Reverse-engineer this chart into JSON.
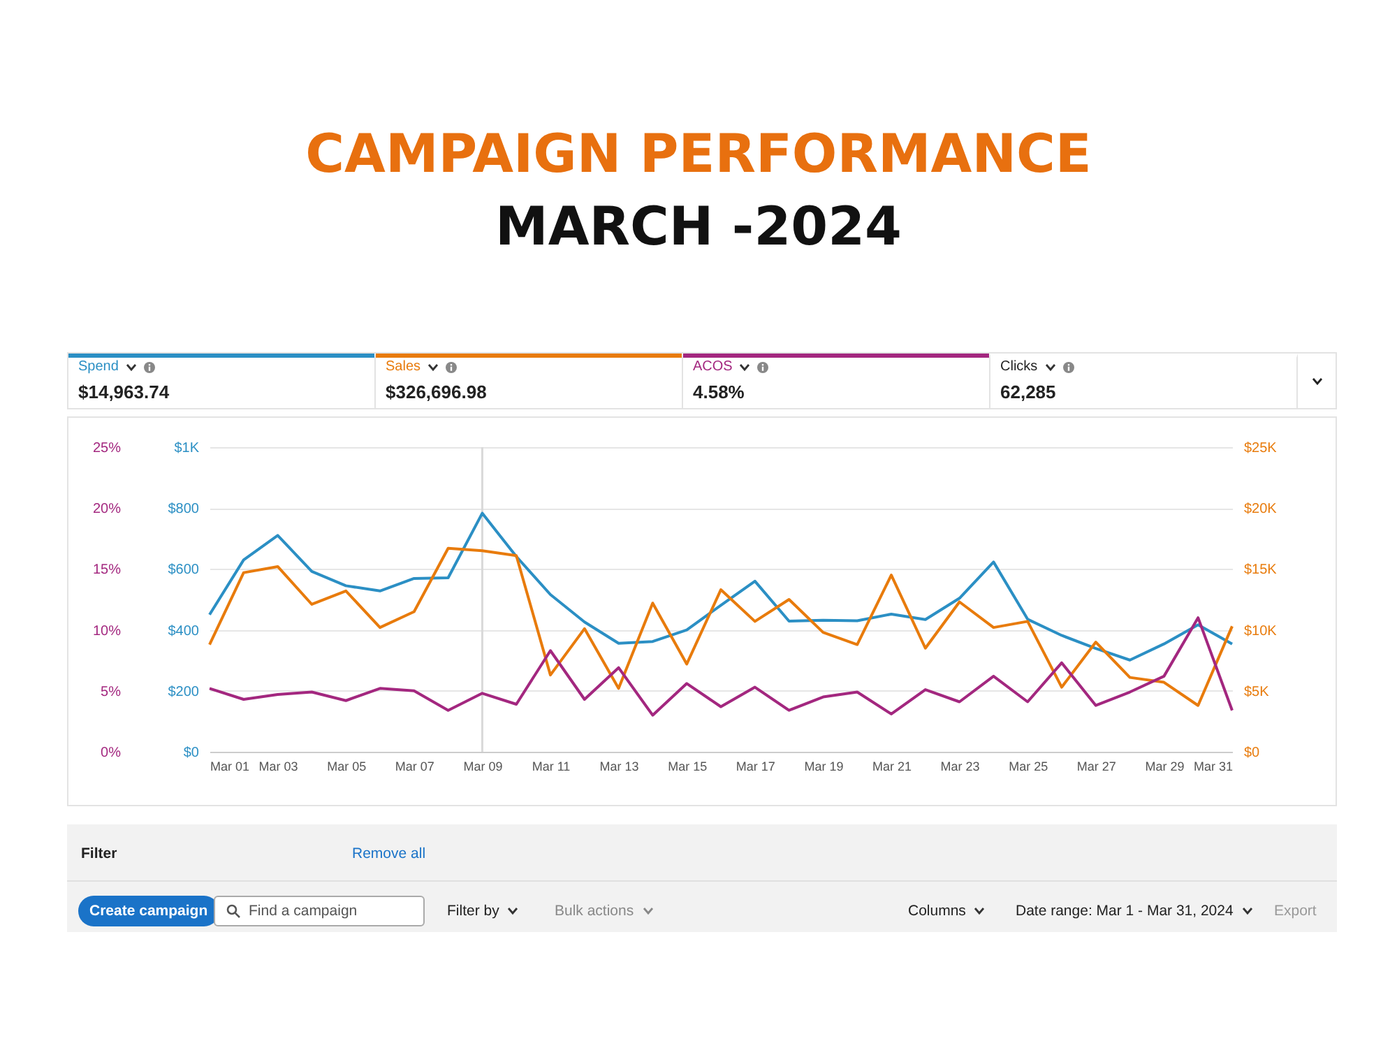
{
  "chart_data": {
    "type": "line",
    "title": "CAMPAIGN PERFORMANCE",
    "subtitle": "MARCH -2024",
    "x": [
      "2024-03-01",
      "2024-03-02",
      "2024-03-03",
      "2024-03-04",
      "2024-03-05",
      "2024-03-06",
      "2024-03-07",
      "2024-03-08",
      "2024-03-09",
      "2024-03-10",
      "2024-03-11",
      "2024-03-12",
      "2024-03-13",
      "2024-03-14",
      "2024-03-15",
      "2024-03-16",
      "2024-03-17",
      "2024-03-18",
      "2024-03-19",
      "2024-03-20",
      "2024-03-21",
      "2024-03-22",
      "2024-03-23",
      "2024-03-24",
      "2024-03-25",
      "2024-03-26",
      "2024-03-27",
      "2024-03-28",
      "2024-03-29",
      "2024-03-30",
      "2024-03-31"
    ],
    "series": [
      {
        "name": "Spend",
        "color": "#2b8fc4",
        "axis": "y",
        "values": [
          450,
          630,
          710,
          592,
          545,
          528,
          569,
          571,
          783,
          641,
          516,
          426,
          356,
          362,
          400,
          481,
          560,
          429,
          432,
          430,
          452,
          434,
          504,
          623,
          435,
          382,
          339,
          301,
          354,
          417,
          354
        ]
      },
      {
        "name": "Sales",
        "color": "#e87b0c",
        "axis": "y2",
        "values": [
          8800,
          14700,
          15200,
          12100,
          13200,
          10200,
          11500,
          16700,
          16500,
          16100,
          6300,
          10100,
          5200,
          12200,
          7200,
          13300,
          10700,
          12500,
          9800,
          8800,
          14500,
          8500,
          12300,
          10200,
          10700,
          5300,
          9000,
          6100,
          5700,
          3800,
          10300
        ]
      },
      {
        "name": "ACOS",
        "color": "#a3277f",
        "axis": "y3",
        "values": [
          5.2,
          4.3,
          4.7,
          4.9,
          4.2,
          5.2,
          5.0,
          3.4,
          4.8,
          3.9,
          8.3,
          4.3,
          6.9,
          3.0,
          5.6,
          3.7,
          5.3,
          3.4,
          4.5,
          4.9,
          3.1,
          5.1,
          4.1,
          6.2,
          4.1,
          7.3,
          3.8,
          4.9,
          6.2,
          11.0,
          3.4
        ]
      }
    ],
    "xlim": [
      "2024-03-01",
      "2024-03-31"
    ],
    "xticks": [
      {
        "value": "2024-03-01",
        "label": "Mar 01"
      },
      {
        "value": "2024-03-03",
        "label": "Mar 03"
      },
      {
        "value": "2024-03-05",
        "label": "Mar 05"
      },
      {
        "value": "2024-03-07",
        "label": "Mar 07"
      },
      {
        "value": "2024-03-09",
        "label": "Mar 09"
      },
      {
        "value": "2024-03-11",
        "label": "Mar 11"
      },
      {
        "value": "2024-03-13",
        "label": "Mar 13"
      },
      {
        "value": "2024-03-15",
        "label": "Mar 15"
      },
      {
        "value": "2024-03-17",
        "label": "Mar 17"
      },
      {
        "value": "2024-03-19",
        "label": "Mar 19"
      },
      {
        "value": "2024-03-21",
        "label": "Mar 21"
      },
      {
        "value": "2024-03-23",
        "label": "Mar 23"
      },
      {
        "value": "2024-03-25",
        "label": "Mar 25"
      },
      {
        "value": "2024-03-27",
        "label": "Mar 27"
      },
      {
        "value": "2024-03-29",
        "label": "Mar 29"
      },
      {
        "value": "2024-03-31",
        "label": "Mar 31"
      }
    ],
    "ylim": [
      0,
      1000
    ],
    "yticks": [
      {
        "value": 0,
        "label": "$0"
      },
      {
        "value": 200,
        "label": "$200"
      },
      {
        "value": 400,
        "label": "$400"
      },
      {
        "value": 600,
        "label": "$600"
      },
      {
        "value": 800,
        "label": "$800"
      },
      {
        "value": 1000,
        "label": "$1K"
      }
    ],
    "y2lim": [
      0,
      25000
    ],
    "y2ticks": [
      {
        "value": 0,
        "label": "$0"
      },
      {
        "value": 5000,
        "label": "$5K"
      },
      {
        "value": 10000,
        "label": "$10K"
      },
      {
        "value": 15000,
        "label": "$15K"
      },
      {
        "value": 20000,
        "label": "$20K"
      },
      {
        "value": 25000,
        "label": "$25K"
      }
    ],
    "y3lim": [
      0,
      25
    ],
    "y3ticks": [
      {
        "value": 0,
        "label": "0%"
      },
      {
        "value": 5,
        "label": "5%"
      },
      {
        "value": 10,
        "label": "10%"
      },
      {
        "value": 15,
        "label": "15%"
      },
      {
        "value": 20,
        "label": "20%"
      },
      {
        "value": 25,
        "label": "25%"
      }
    ],
    "ref_lines": [
      {
        "axis": "x",
        "value": "2024-03-09",
        "color": "#d9d9d9"
      }
    ],
    "grid": "y",
    "legend": "top",
    "annotations": [
      "$14,963.74",
      "$326,696.98",
      "4.58%",
      "Clicks",
      "62,285",
      "Filter",
      "Remove all",
      "Create campaign",
      "Find a campaign",
      "Filter by",
      "Bulk actions",
      "Columns",
      "Date range: Mar 1 - Mar 31, 2024",
      "Export"
    ]
  }
}
